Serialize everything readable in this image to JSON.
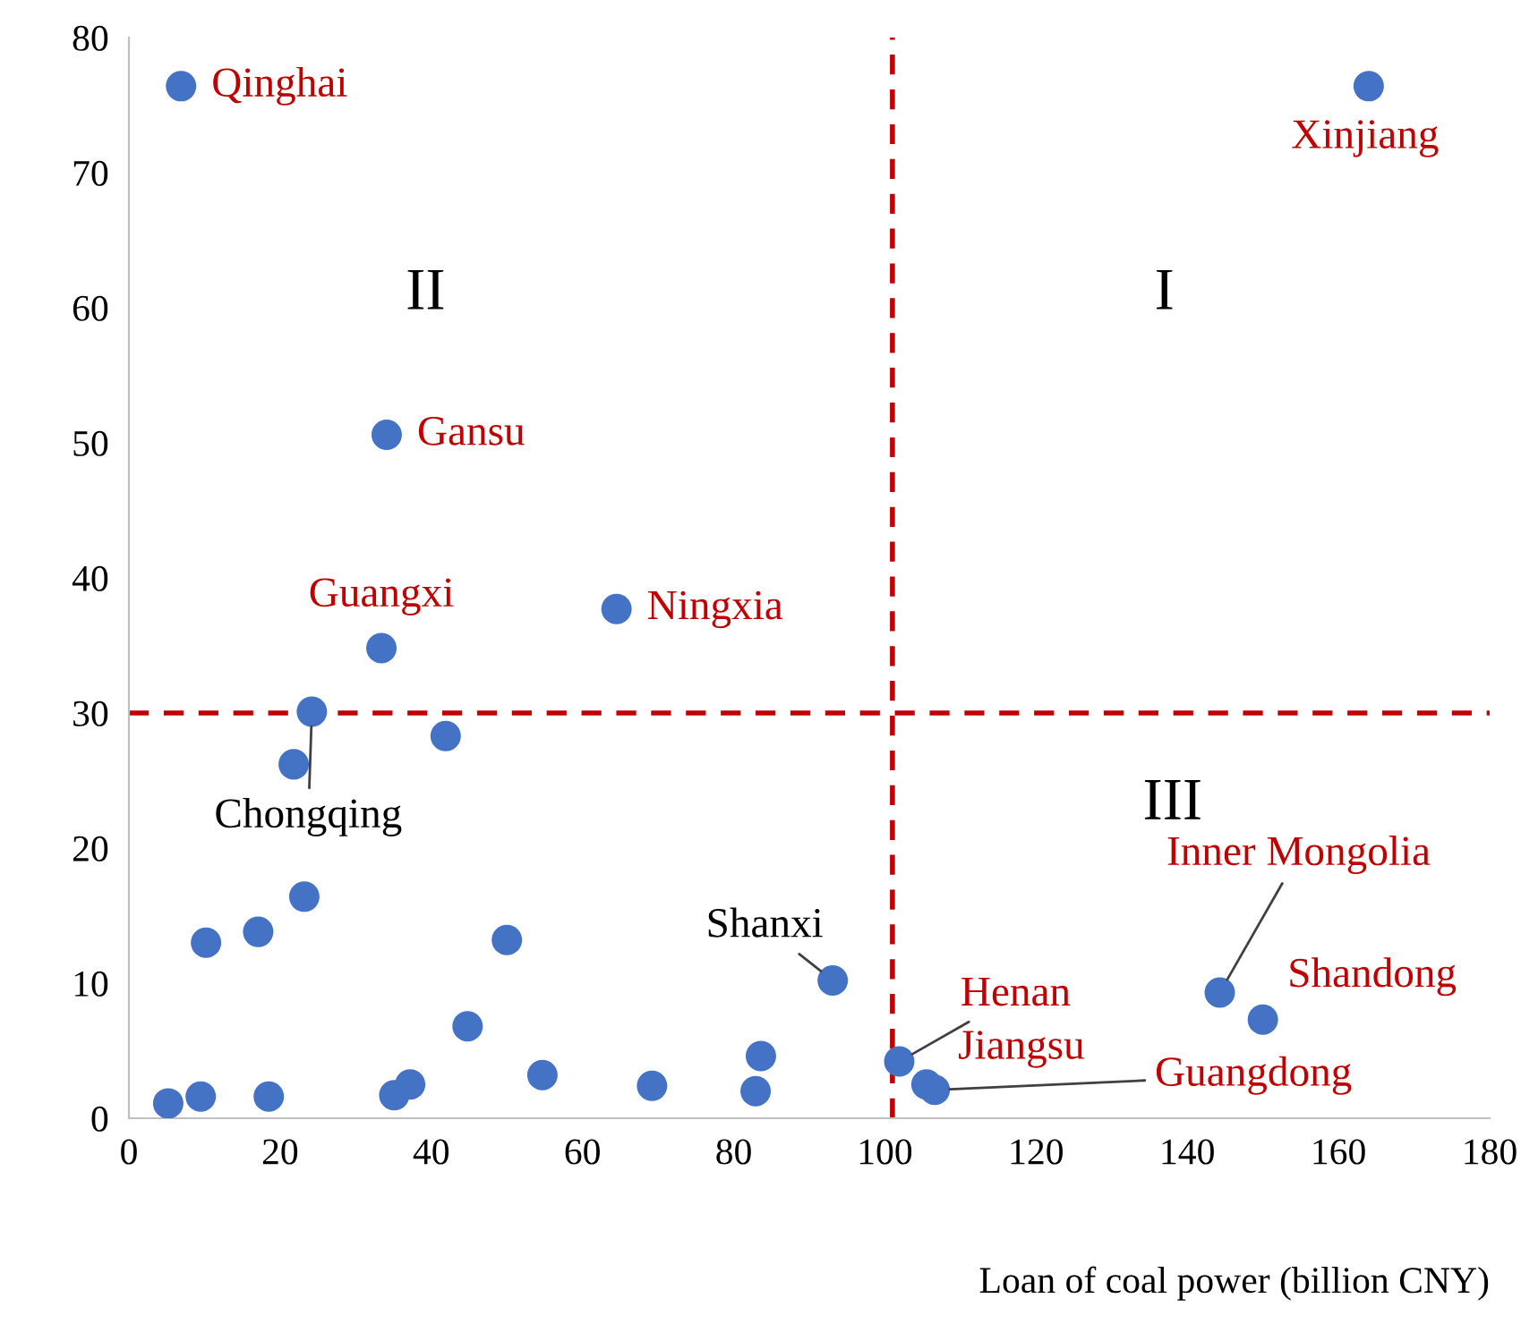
{
  "chart_data": {
    "type": "scatter",
    "xlabel": "Loan of coal power (billion CNY)",
    "x": [
      6.9,
      164,
      34.1,
      64.5,
      33.4,
      24.2,
      21.8,
      41.9,
      10.2,
      17.1,
      23.2,
      50.0,
      44.8,
      93.1,
      5.2,
      9.5,
      18.5,
      35.1,
      37.2,
      54.7,
      69.2,
      82.9,
      83.6,
      101.9,
      105.5,
      106.6,
      144.3,
      150.0
    ],
    "values": [
      76.4,
      76.4,
      50.6,
      37.7,
      34.8,
      30.1,
      26.2,
      28.3,
      13.0,
      13.8,
      16.4,
      13.2,
      6.8,
      10.2,
      1.1,
      1.6,
      1.6,
      1.7,
      2.5,
      3.2,
      2.4,
      2.0,
      4.6,
      4.2,
      2.5,
      2.1,
      9.3,
      7.3
    ],
    "color": "#4472c4",
    "marker": "circle",
    "xlim": [
      0,
      180
    ],
    "xticks": [
      0,
      20,
      40,
      60,
      80,
      100,
      120,
      140,
      160,
      180
    ],
    "ylim": [
      0,
      80
    ],
    "yticks": [
      0,
      10,
      20,
      30,
      40,
      50,
      60,
      70,
      80
    ],
    "grid": false,
    "legend": false,
    "ref_lines": [
      {
        "axis": "x",
        "value": 101,
        "label": null,
        "color": "#c00000",
        "line_style": "dashed"
      },
      {
        "axis": "y",
        "value": 30,
        "label": null,
        "color": "#c00000",
        "line_style": "dashed"
      }
    ],
    "annotations": [
      {
        "text": "Qinghai",
        "x": 6.9,
        "y": 76.4
      },
      {
        "text": "Xinjiang",
        "x": 164,
        "y": 76.4
      },
      {
        "text": "Gansu",
        "x": 34.1,
        "y": 50.6
      },
      {
        "text": "Ningxia",
        "x": 64.5,
        "y": 37.7
      },
      {
        "text": "Guangxi",
        "x": 33.4,
        "y": 34.8
      },
      {
        "text": "Chongqing",
        "x": 24.2,
        "y": 30.1
      },
      {
        "text": "Shanxi",
        "x": 93.1,
        "y": 10.2
      },
      {
        "text": "Henan",
        "x": 101.9,
        "y": 4.2
      },
      {
        "text": "Jiangsu",
        "x": 105.5,
        "y": 2.5
      },
      {
        "text": "Guangdong",
        "x": 106.6,
        "y": 2.1
      },
      {
        "text": "Inner Mongolia",
        "x": 144.3,
        "y": 9.3
      },
      {
        "text": "Shandong",
        "x": 150.0,
        "y": 7.3
      },
      "II",
      "I",
      "III"
    ]
  }
}
